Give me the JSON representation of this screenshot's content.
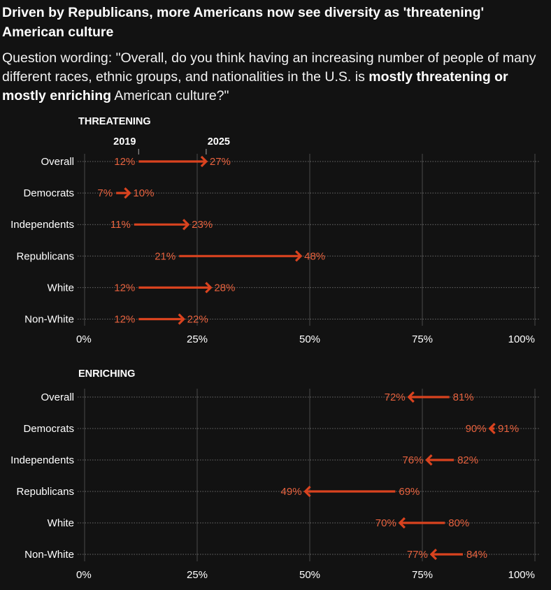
{
  "title": "Driven by Republicans, more Americans now see diversity as 'threatening' American culture",
  "subtitle": {
    "prefix": "Question wording: \"Overall, do you think having an increasing number of people of many different races, ethnic groups, and nationalities in the U.S. is ",
    "bold": "mostly threatening or mostly enriching",
    "suffix": " American culture?\""
  },
  "colors": {
    "arrow": "#d9431f",
    "label": "#e8623e",
    "grid": "#4a4a4a",
    "dots": "#6a6a6a"
  },
  "chart_data": [
    {
      "type": "arrow",
      "title": "THREATENING",
      "from_label": "2019",
      "to_label": "2025",
      "categories": [
        "Overall",
        "Democrats",
        "Independents",
        "Republicans",
        "White",
        "Non-White"
      ],
      "series": [
        {
          "name": "2019",
          "values": [
            12,
            7,
            11,
            21,
            12,
            12
          ]
        },
        {
          "name": "2025",
          "values": [
            27,
            10,
            23,
            48,
            28,
            22
          ]
        }
      ],
      "xlim": [
        0,
        100
      ],
      "xticks": [
        0,
        25,
        50,
        75,
        100
      ],
      "tick_labels": [
        "0%",
        "25%",
        "50%",
        "75%",
        "100%"
      ],
      "grid": true
    },
    {
      "type": "arrow",
      "title": "ENRICHING",
      "categories": [
        "Overall",
        "Democrats",
        "Independents",
        "Republicans",
        "White",
        "Non-White"
      ],
      "series": [
        {
          "name": "2019",
          "values": [
            81,
            91,
            82,
            69,
            80,
            84
          ]
        },
        {
          "name": "2025",
          "values": [
            72,
            90,
            76,
            49,
            70,
            77
          ]
        }
      ],
      "xlim": [
        0,
        100
      ],
      "xticks": [
        0,
        25,
        50,
        75,
        100
      ],
      "tick_labels": [
        "0%",
        "25%",
        "50%",
        "75%",
        "100%"
      ],
      "grid": true
    }
  ]
}
